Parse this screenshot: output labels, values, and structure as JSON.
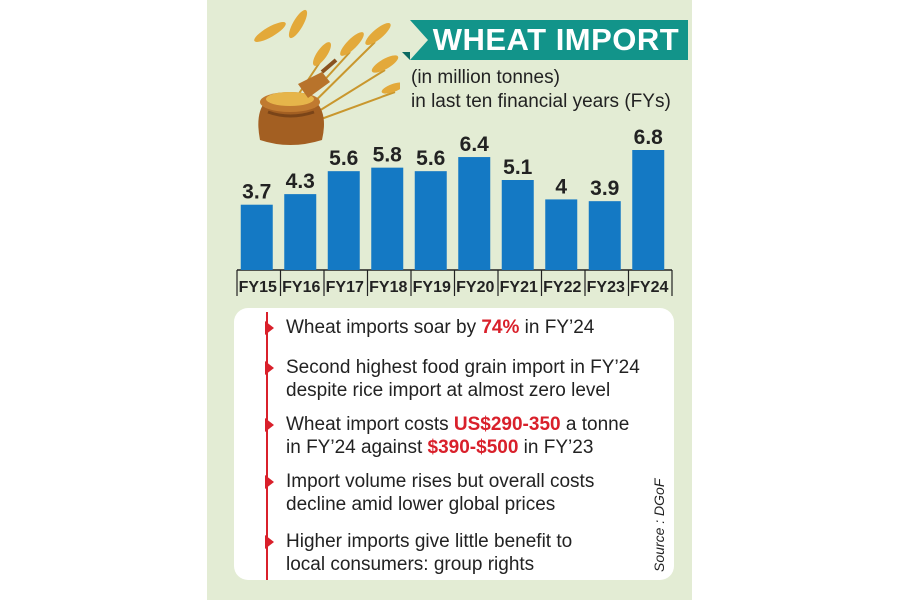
{
  "header": {
    "title": "WHEAT IMPORT",
    "subtitle_line1": "(in million tonnes)",
    "subtitle_line2": "in last ten financial years (FYs)"
  },
  "colors": {
    "background": "#e3ecd4",
    "bar": "#1479c4",
    "title_bg": "#12948a",
    "accent": "#d9202b"
  },
  "illustration": {
    "icon": "wheat-sack-icon"
  },
  "chart_data": {
    "type": "bar",
    "title": "WHEAT IMPORT",
    "ylabel": "",
    "xlabel": "",
    "categories": [
      "FY15",
      "FY16",
      "FY17",
      "FY18",
      "FY19",
      "FY20",
      "FY21",
      "FY22",
      "FY23",
      "FY24"
    ],
    "values": [
      3.7,
      4.3,
      5.6,
      5.8,
      5.6,
      6.4,
      5.1,
      4,
      3.9,
      6.8
    ],
    "value_labels": [
      "3.7",
      "4.3",
      "5.6",
      "5.8",
      "5.6",
      "6.4",
      "5.1",
      "4",
      "3.9",
      "6.8"
    ],
    "ylim": [
      0,
      6.8
    ],
    "grid": false,
    "legend": "none"
  },
  "bullets": [
    {
      "segments": [
        {
          "text": "Wheat imports soar by ",
          "hl": false
        },
        {
          "text": "74%",
          "hl": true
        },
        {
          "text": " in FY’24",
          "hl": false
        }
      ]
    },
    {
      "line1": "Second highest food grain import in FY’24",
      "line2": "despite rice import at almost zero level"
    },
    {
      "line1": [
        {
          "text": "Wheat import costs ",
          "hl": false
        },
        {
          "text": "US$290-350",
          "hl": true
        },
        {
          "text": " a tonne",
          "hl": false
        }
      ],
      "line2": [
        {
          "text": "in FY’24 against ",
          "hl": false
        },
        {
          "text": "$390-$500",
          "hl": true
        },
        {
          "text": " in FY’23",
          "hl": false
        }
      ]
    },
    {
      "line1": "Import volume rises but overall costs",
      "line2": "decline amid lower global prices"
    },
    {
      "line1": "Higher imports give little benefit to",
      "line2": "local consumers: group rights"
    }
  ],
  "source": "Source : DGoF"
}
